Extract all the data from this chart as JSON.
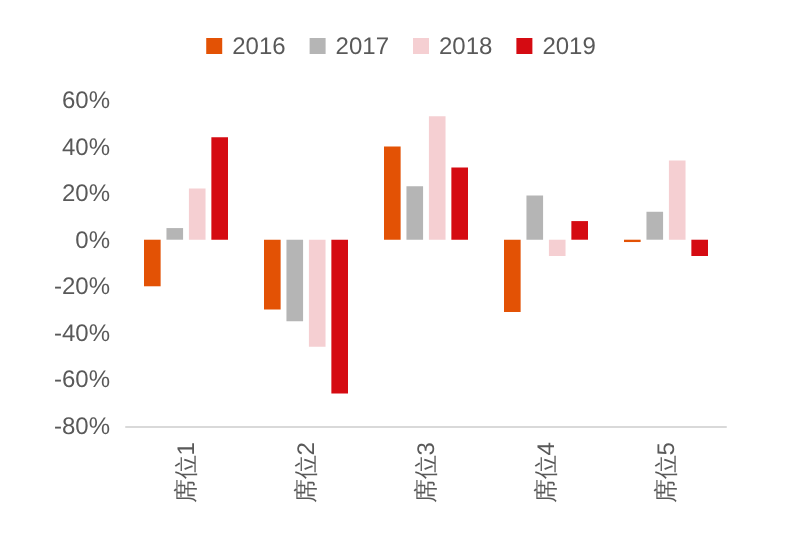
{
  "chart_data": {
    "type": "bar",
    "categories": [
      "席位1",
      "席位2",
      "席位3",
      "席位4",
      "席位5"
    ],
    "series": [
      {
        "name": "2016",
        "color": "#e35205",
        "values": [
          -20,
          -30,
          40,
          -31,
          -1
        ]
      },
      {
        "name": "2017",
        "color": "#b5b5b5",
        "values": [
          5,
          -35,
          23,
          19,
          12
        ]
      },
      {
        "name": "2018",
        "color": "#f5cfd2",
        "values": [
          22,
          -46,
          53,
          -7,
          34
        ]
      },
      {
        "name": "2019",
        "color": "#d50b12",
        "values": [
          44,
          -66,
          31,
          8,
          -7
        ]
      }
    ],
    "ylim": [
      -80,
      60
    ],
    "yticks": [
      {
        "value": -80,
        "label": "-80%"
      },
      {
        "value": -60,
        "label": "-60%"
      },
      {
        "value": -40,
        "label": "-40%"
      },
      {
        "value": -20,
        "label": "-20%"
      },
      {
        "value": 0,
        "label": "0%"
      },
      {
        "value": 20,
        "label": "20%"
      },
      {
        "value": 40,
        "label": "40%"
      },
      {
        "value": 60,
        "label": "60%"
      }
    ],
    "grid": false,
    "legend": "top"
  }
}
